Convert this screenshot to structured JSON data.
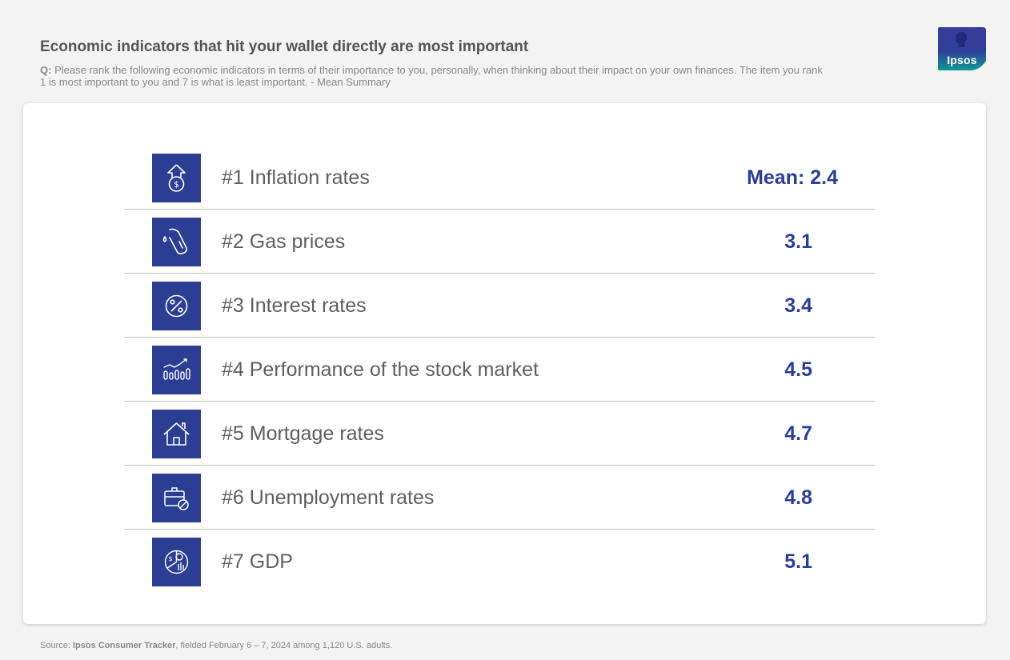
{
  "header": {
    "title": "Economic indicators that hit your wallet directly are most important",
    "question_prefix": "Q:",
    "question_text": " Please rank the following economic indicators in terms of their importance to you, personally, when thinking about their impact on your own finances. The item you rank 1 is most important to you and 7 is what is least important. - Mean Summary"
  },
  "logo": {
    "text": "Ipsos",
    "colors": {
      "top": "#3b3b9c",
      "bottom": "#0e9a8f"
    }
  },
  "accent_color": "#2c3e94",
  "items": [
    {
      "label": "#1 Inflation rates",
      "value": "Mean: 2.4",
      "icon": "inflation-icon"
    },
    {
      "label": "#2 Gas prices",
      "value": "3.1",
      "icon": "gas-pump-icon"
    },
    {
      "label": "#3 Interest rates",
      "value": "3.4",
      "icon": "percent-icon"
    },
    {
      "label": "#4 Performance of the stock market",
      "value": "4.5",
      "icon": "stock-chart-icon"
    },
    {
      "label": "#5 Mortgage rates",
      "value": "4.7",
      "icon": "house-icon"
    },
    {
      "label": "#6 Unemployment rates",
      "value": "4.8",
      "icon": "briefcase-no-icon"
    },
    {
      "label": "#7 GDP",
      "value": "5.1",
      "icon": "gdp-pie-icon"
    }
  ],
  "footer": {
    "prefix": "Source: ",
    "source": "Ipsos Consumer Tracker",
    "suffix": ", fielded February 6 – 7, 2024 among 1,120 U.S. adults."
  }
}
